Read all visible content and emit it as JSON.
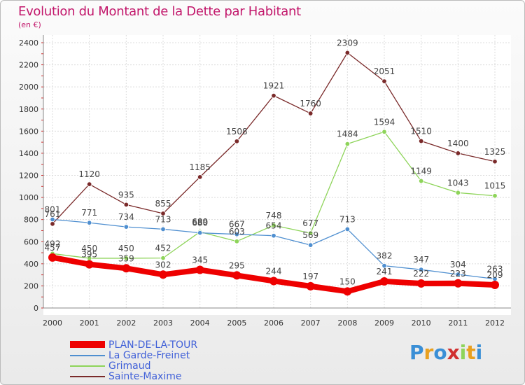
{
  "chart_data": {
    "type": "line",
    "title": "Evolution du Montant de la Dette par Habitant",
    "subtitle": "(en €)",
    "xlabel": "",
    "ylabel": "",
    "ylim": [
      0,
      2400
    ],
    "yticks": [
      0,
      200,
      400,
      600,
      800,
      1000,
      1200,
      1400,
      1600,
      1800,
      2000,
      2200,
      2400
    ],
    "ytick_labels": [
      "0",
      "200",
      "400",
      "600",
      "800",
      "1000",
      "1200",
      "1400",
      "1600",
      "1800",
      "2000",
      "2200",
      "2400"
    ],
    "x": [
      "2000",
      "2001",
      "2002",
      "2003",
      "2004",
      "2005",
      "2006",
      "2007",
      "2008",
      "2009",
      "2010",
      "2011",
      "2012"
    ],
    "grid": true,
    "legend": "bottom-left",
    "series": [
      {
        "name": "Sainte-Maxime",
        "color": "#7a2a2a",
        "values": [
          761,
          1120,
          935,
          855,
          1185,
          1508,
          1921,
          1760,
          2309,
          2051,
          1510,
          1400,
          1325
        ],
        "labels": [
          "761",
          "1120",
          "935",
          "855",
          "1185",
          "1508",
          "1921",
          "1760",
          "2309",
          "2051",
          "1510",
          "1400",
          "1325"
        ]
      },
      {
        "name": "Grimaud",
        "color": "#8ed45a",
        "values": [
          492,
          450,
          450,
          452,
          689,
          603,
          748,
          677,
          1484,
          1594,
          1149,
          1043,
          1015
        ],
        "labels": [
          "492",
          "450",
          "450",
          "452",
          "689",
          "603",
          "748",
          "677",
          "1484",
          "1594",
          "1149",
          "1043",
          "1015"
        ]
      },
      {
        "name": "La Garde-Freinet",
        "color": "#4f8fd0",
        "values": [
          801,
          771,
          734,
          713,
          680,
          667,
          654,
          569,
          713,
          382,
          347,
          304,
          263
        ],
        "labels": [
          "801",
          "771",
          "734",
          "713",
          "680",
          "667",
          "654",
          "569",
          "713",
          "382",
          "347",
          "304",
          "263"
        ]
      },
      {
        "name": "PLAN-DE-LA-TOUR",
        "color": "#ee0000",
        "values": [
          457,
          395,
          359,
          302,
          345,
          295,
          244,
          197,
          150,
          241,
          222,
          223,
          209
        ],
        "labels": [
          "457",
          "395",
          "359",
          "302",
          "345",
          "295",
          "244",
          "197",
          "150",
          "241",
          "222",
          "223",
          "209"
        ]
      }
    ]
  },
  "legend": {
    "items": [
      {
        "label": "PLAN-DE-LA-TOUR",
        "color": "#ee0000"
      },
      {
        "label": "La Garde-Freinet",
        "color": "#4f8fd0"
      },
      {
        "label": "Grimaud",
        "color": "#8ed45a"
      },
      {
        "label": "Sainte-Maxime",
        "color": "#7a2a2a"
      }
    ]
  },
  "logo": {
    "text": "Proxiti"
  }
}
